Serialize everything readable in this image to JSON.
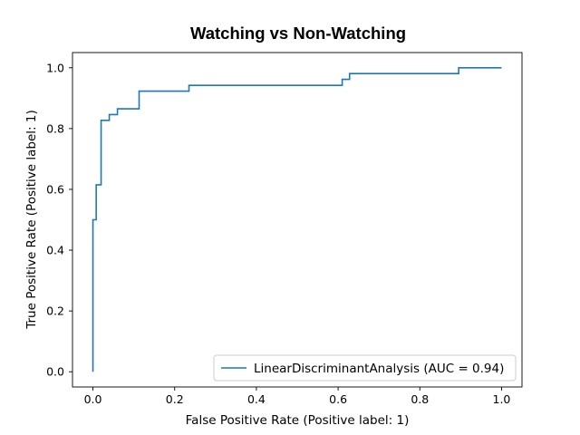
{
  "chart_data": {
    "type": "line",
    "title": "Watching vs Non-Watching",
    "xlabel": "False Positive Rate (Positive label: 1)",
    "ylabel": "True Positive Rate (Positive label: 1)",
    "xlim": [
      -0.05,
      1.05
    ],
    "ylim": [
      -0.05,
      1.05
    ],
    "xticks": [
      0.0,
      0.2,
      0.4,
      0.6,
      0.8,
      1.0
    ],
    "yticks": [
      0.0,
      0.2,
      0.4,
      0.6,
      0.8,
      1.0
    ],
    "xtick_labels": [
      "0.0",
      "0.2",
      "0.4",
      "0.6",
      "0.8",
      "1.0"
    ],
    "ytick_labels": [
      "0.0",
      "0.2",
      "0.4",
      "0.6",
      "0.8",
      "1.0"
    ],
    "grid": false,
    "legend_position": "bottom-right",
    "series": [
      {
        "name": "LinearDiscriminantAnalysis (AUC = 0.94)",
        "color": "#1f77b4",
        "drawstyle": "steps",
        "x": [
          0.0,
          0.0,
          0.0,
          0.008,
          0.008,
          0.02,
          0.02,
          0.04,
          0.04,
          0.06,
          0.06,
          0.113,
          0.113,
          0.235,
          0.235,
          0.61,
          0.61,
          0.628,
          0.628,
          0.895,
          0.895,
          1.0
        ],
        "y": [
          0.0,
          0.5,
          0.5,
          0.5,
          0.615,
          0.615,
          0.827,
          0.827,
          0.846,
          0.846,
          0.865,
          0.865,
          0.923,
          0.923,
          0.942,
          0.942,
          0.962,
          0.962,
          0.981,
          0.981,
          1.0,
          1.0
        ]
      }
    ]
  }
}
